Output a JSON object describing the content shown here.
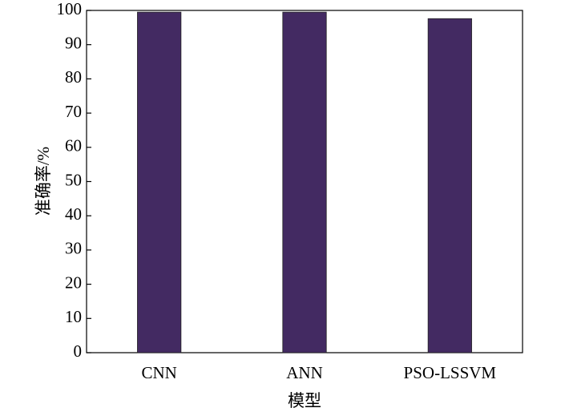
{
  "chart_data": {
    "type": "bar",
    "x_label": "模型",
    "y_label": "准确率/%",
    "categories": [
      "CNN",
      "ANN",
      "PSO-LSSVM"
    ],
    "values": [
      99.5,
      99.5,
      97.6
    ],
    "color": "#432a62",
    "ylim": [
      0,
      100
    ],
    "yticks": [
      0,
      10,
      20,
      30,
      40,
      50,
      60,
      70,
      80,
      90,
      100
    ],
    "grid": false
  }
}
